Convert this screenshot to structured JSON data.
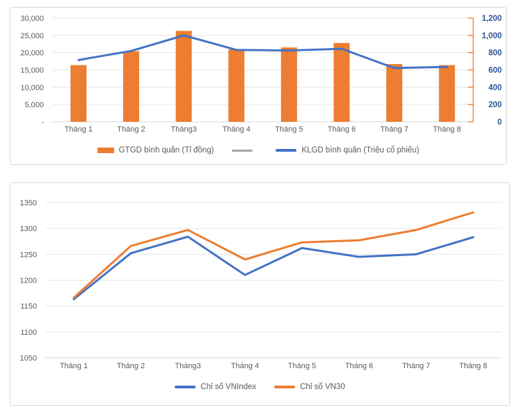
{
  "colors": {
    "orange": "#ED7D31",
    "blue": "#4472C4",
    "legend_gray": "#A6A6A6",
    "axis_label_gray": "#595959",
    "right_axis_label_blue": "#305496",
    "gridline": "#E6E6E6",
    "axis_line": "#D9D9D9",
    "card_border": "#D9D9D9",
    "background": "#FFFFFF"
  },
  "chart_data": [
    {
      "type": "combo-bar-line",
      "categories": [
        "Tháng 1",
        "Tháng 2",
        "Tháng3",
        "Tháng 4",
        "Tháng 5",
        "Tháng 6",
        "Tháng 7",
        "Tháng 8"
      ],
      "series": [
        {
          "name": "GTGD bình quân (Tỉ đồng)",
          "kind": "bar",
          "axis": "left",
          "color_key": "orange",
          "values": [
            16400,
            20400,
            26300,
            20900,
            21500,
            22800,
            16700,
            16400
          ]
        },
        {
          "name": "",
          "kind": "line",
          "axis": "left",
          "color_key": "legend_gray",
          "values": []
        },
        {
          "name": "KLGD bình quân (Triệu cổ phiếu)",
          "kind": "line",
          "axis": "right",
          "color_key": "blue",
          "values": [
            715,
            820,
            1000,
            832,
            825,
            845,
            622,
            635
          ]
        }
      ],
      "left_axis": {
        "min": 0,
        "max": 30000,
        "step": 5000,
        "tick_labels": [
          "-",
          "5,000",
          "10,000",
          "15,000",
          "20,000",
          "25,000",
          "30,000"
        ]
      },
      "right_axis": {
        "min": 0,
        "max": 1200,
        "step": 200,
        "tick_labels": [
          "0",
          "200",
          "400",
          "600",
          "800",
          "1,000",
          "1,200"
        ]
      },
      "grid": true,
      "legend_position": "bottom"
    },
    {
      "type": "line",
      "categories": [
        "Tháng 1",
        "Tháng 2",
        "Tháng3",
        "Tháng 4",
        "Tháng 5",
        "Tháng 6",
        "Tháng 7",
        "Tháng 8"
      ],
      "series": [
        {
          "name": "Chỉ số VNIndex",
          "color_key": "blue",
          "values": [
            1163,
            1252,
            1284,
            1210,
            1262,
            1245,
            1250,
            1283
          ]
        },
        {
          "name": "Chỉ số VN30",
          "color_key": "orange",
          "values": [
            1166,
            1266,
            1297,
            1240,
            1273,
            1277,
            1297,
            1331
          ]
        }
      ],
      "y_axis": {
        "min": 1050,
        "max": 1350,
        "step": 50,
        "tick_labels": [
          "1050",
          "1100",
          "1150",
          "1200",
          "1250",
          "1300",
          "1350"
        ]
      },
      "grid": true,
      "legend_position": "bottom"
    }
  ]
}
